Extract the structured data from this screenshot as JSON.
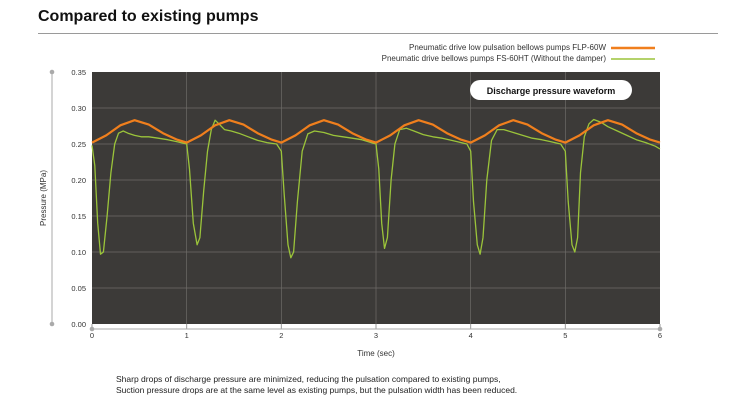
{
  "heading": "Compared to existing pumps",
  "legend": [
    {
      "label": "Pneumatic drive low pulsation bellows pumps FLP-60W",
      "color": "#f07f1d"
    },
    {
      "label": "Pneumatic drive bellows pumps FS-60HT (Without the damper)",
      "color": "#9bc43a"
    }
  ],
  "colors": {
    "plot_background": "#3c3a38",
    "plot_grid": "#6f6c69",
    "axis": "#999999"
  },
  "footnote": [
    "Sharp drops of discharge pressure are minimized, reducing the pulsation compared to existing pumps,",
    "Suction pressure drops are at the same level as existing pumps, but the pulsation width has been reduced."
  ],
  "chart_data": {
    "type": "line",
    "inset_label": "Discharge pressure waveform",
    "xlabel": "Time (sec)",
    "ylabel": "Pressure (MPa)",
    "xlim": [
      0,
      6
    ],
    "ylim": [
      0,
      0.35
    ],
    "xticks": [
      0,
      1,
      2,
      3,
      4,
      5,
      6
    ],
    "yticks": [
      "0.00",
      "0.05",
      "0.10",
      "0.15",
      "0.20",
      "0.25",
      "0.30",
      "0.35"
    ],
    "grid": true,
    "legend_position": "top-right, outside plot",
    "series": [
      {
        "name": "Pneumatic drive low pulsation bellows pumps FLP-60W",
        "color": "#f07f1d",
        "x": [
          0,
          0.15,
          0.3,
          0.45,
          0.6,
          0.75,
          0.9,
          1.0,
          1.15,
          1.3,
          1.45,
          1.6,
          1.75,
          1.9,
          2.0,
          2.15,
          2.3,
          2.45,
          2.6,
          2.75,
          2.9,
          3.0,
          3.15,
          3.3,
          3.45,
          3.6,
          3.75,
          3.9,
          4.0,
          4.15,
          4.3,
          4.45,
          4.6,
          4.75,
          4.9,
          5.0,
          5.15,
          5.3,
          5.45,
          5.6,
          5.75,
          5.9,
          6.0
        ],
        "y": [
          0.252,
          0.262,
          0.276,
          0.283,
          0.277,
          0.265,
          0.256,
          0.252,
          0.262,
          0.276,
          0.283,
          0.277,
          0.265,
          0.256,
          0.252,
          0.262,
          0.276,
          0.283,
          0.277,
          0.265,
          0.256,
          0.252,
          0.262,
          0.276,
          0.283,
          0.277,
          0.265,
          0.256,
          0.252,
          0.262,
          0.276,
          0.283,
          0.277,
          0.265,
          0.256,
          0.252,
          0.262,
          0.276,
          0.283,
          0.277,
          0.265,
          0.256,
          0.252
        ]
      },
      {
        "name": "Pneumatic drive bellows pumps FS-60HT (Without the damper)",
        "color": "#9bc43a",
        "x": [
          0,
          0.03,
          0.06,
          0.09,
          0.12,
          0.16,
          0.2,
          0.24,
          0.28,
          0.33,
          0.38,
          0.45,
          0.52,
          0.6,
          0.7,
          0.8,
          0.9,
          1.0,
          1.03,
          1.07,
          1.11,
          1.14,
          1.18,
          1.22,
          1.26,
          1.3,
          1.34,
          1.4,
          1.47,
          1.55,
          1.65,
          1.75,
          1.85,
          1.95,
          2.0,
          2.03,
          2.07,
          2.1,
          2.13,
          2.17,
          2.22,
          2.28,
          2.35,
          2.45,
          2.55,
          2.65,
          2.75,
          2.85,
          2.95,
          3.0,
          3.03,
          3.06,
          3.09,
          3.12,
          3.16,
          3.2,
          3.25,
          3.32,
          3.4,
          3.5,
          3.6,
          3.7,
          3.8,
          3.9,
          3.96,
          4.0,
          4.03,
          4.07,
          4.1,
          4.13,
          4.17,
          4.22,
          4.28,
          4.35,
          4.45,
          4.55,
          4.65,
          4.75,
          4.85,
          4.95,
          5.0,
          5.03,
          5.07,
          5.1,
          5.13,
          5.16,
          5.2,
          5.25,
          5.3,
          5.38,
          5.45,
          5.55,
          5.65,
          5.75,
          5.85,
          5.95,
          6.0
        ],
        "y": [
          0.248,
          0.22,
          0.14,
          0.097,
          0.1,
          0.15,
          0.21,
          0.25,
          0.265,
          0.268,
          0.265,
          0.262,
          0.26,
          0.26,
          0.258,
          0.256,
          0.253,
          0.25,
          0.215,
          0.14,
          0.11,
          0.12,
          0.185,
          0.24,
          0.27,
          0.283,
          0.278,
          0.27,
          0.268,
          0.265,
          0.26,
          0.255,
          0.252,
          0.25,
          0.24,
          0.18,
          0.11,
          0.092,
          0.1,
          0.17,
          0.24,
          0.264,
          0.268,
          0.266,
          0.262,
          0.26,
          0.258,
          0.256,
          0.252,
          0.25,
          0.215,
          0.14,
          0.105,
          0.12,
          0.2,
          0.25,
          0.27,
          0.272,
          0.268,
          0.263,
          0.26,
          0.258,
          0.255,
          0.252,
          0.25,
          0.24,
          0.17,
          0.11,
          0.097,
          0.12,
          0.2,
          0.255,
          0.27,
          0.27,
          0.266,
          0.262,
          0.258,
          0.256,
          0.253,
          0.25,
          0.24,
          0.17,
          0.11,
          0.1,
          0.12,
          0.21,
          0.26,
          0.278,
          0.284,
          0.28,
          0.274,
          0.268,
          0.262,
          0.256,
          0.252,
          0.247,
          0.243
        ]
      }
    ]
  }
}
